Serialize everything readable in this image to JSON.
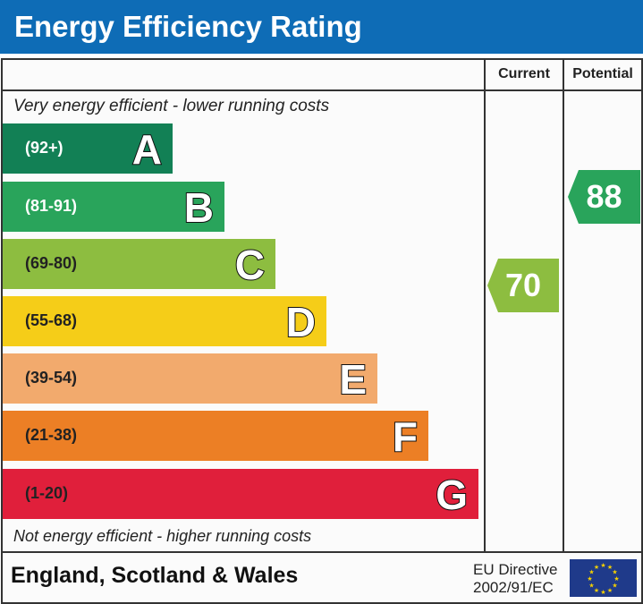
{
  "header": {
    "title": "Energy Efficiency Rating"
  },
  "columns": {
    "current": "Current",
    "potential": "Potential"
  },
  "notes": {
    "top": "Very energy efficient - lower running costs",
    "bottom": "Not energy efficient - higher running costs"
  },
  "footer": {
    "region": "England, Scotland & Wales",
    "directive_line1": "EU Directive",
    "directive_line2": "2002/91/EC"
  },
  "chart_data": {
    "type": "bar",
    "bands": [
      {
        "letter": "A",
        "range": "(92+)",
        "color": "#128055",
        "text_color": "#ffffff"
      },
      {
        "letter": "B",
        "range": "(81-91)",
        "color": "#29a45b",
        "text_color": "#ffffff"
      },
      {
        "letter": "C",
        "range": "(69-80)",
        "color": "#8dbd40",
        "text_color": "#222222"
      },
      {
        "letter": "D",
        "range": "(55-68)",
        "color": "#f5cd18",
        "text_color": "#222222"
      },
      {
        "letter": "E",
        "range": "(39-54)",
        "color": "#f2aa6d",
        "text_color": "#222222"
      },
      {
        "letter": "F",
        "range": "(21-38)",
        "color": "#ec7f25",
        "text_color": "#222222"
      },
      {
        "letter": "G",
        "range": "(1-20)",
        "color": "#e01f3b",
        "text_color": "#222222"
      }
    ],
    "current": {
      "value": "70",
      "band": "C",
      "color": "#8dbd40"
    },
    "potential": {
      "value": "88",
      "band": "B",
      "color": "#29a45b"
    }
  }
}
